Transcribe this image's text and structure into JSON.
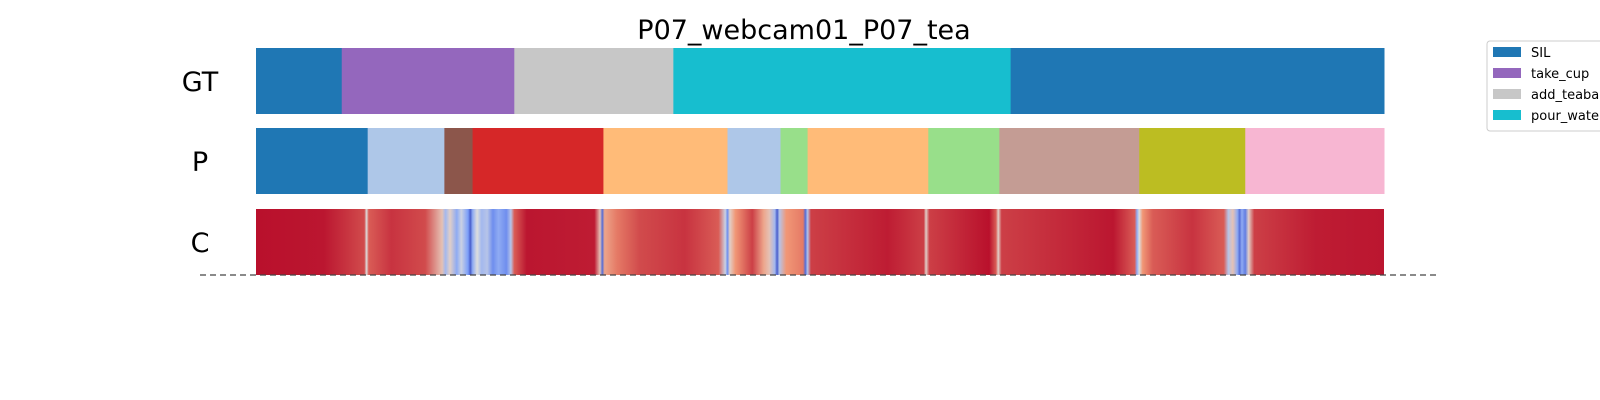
{
  "chart_data": {
    "type": "segmentation-timeline",
    "title": "P07_webcam01_P07_tea",
    "x_range": [
      0,
      1000
    ],
    "rows": [
      {
        "label": "GT",
        "segments": [
          {
            "start": 0,
            "end": 76,
            "color": "#1f77b4"
          },
          {
            "start": 76,
            "end": 229,
            "color": "#9467bd"
          },
          {
            "start": 229,
            "end": 370,
            "color": "#c7c7c7"
          },
          {
            "start": 370,
            "end": 669,
            "color": "#17becf"
          },
          {
            "start": 669,
            "end": 1000,
            "color": "#1f77b4"
          }
        ]
      },
      {
        "label": "P",
        "segments": [
          {
            "start": 0,
            "end": 99,
            "color": "#1f77b4"
          },
          {
            "start": 99,
            "end": 167,
            "color": "#aec7e8"
          },
          {
            "start": 167,
            "end": 192,
            "color": "#8c564b"
          },
          {
            "start": 192,
            "end": 308,
            "color": "#d62728"
          },
          {
            "start": 308,
            "end": 418,
            "color": "#ffbb78"
          },
          {
            "start": 418,
            "end": 465,
            "color": "#aec7e8"
          },
          {
            "start": 465,
            "end": 489,
            "color": "#98df8a"
          },
          {
            "start": 489,
            "end": 596,
            "color": "#ffbb78"
          },
          {
            "start": 596,
            "end": 659,
            "color": "#98df8a"
          },
          {
            "start": 659,
            "end": 783,
            "color": "#c49c94"
          },
          {
            "start": 783,
            "end": 877,
            "color": "#bcbd22"
          },
          {
            "start": 877,
            "end": 1000,
            "color": "#f7b6d2"
          }
        ]
      },
      {
        "label": "C",
        "colormap": "coolwarm",
        "confidence_stops": [
          [
            0,
            0.98
          ],
          [
            60,
            0.97
          ],
          [
            96,
            0.88
          ],
          [
            98,
            0.5
          ],
          [
            100,
            0.85
          ],
          [
            120,
            0.92
          ],
          [
            150,
            0.88
          ],
          [
            165,
            0.6
          ],
          [
            168,
            0.35
          ],
          [
            172,
            0.55
          ],
          [
            178,
            0.3
          ],
          [
            182,
            0.45
          ],
          [
            188,
            0.25
          ],
          [
            190,
            0.05
          ],
          [
            192,
            0.3
          ],
          [
            196,
            0.5
          ],
          [
            200,
            0.35
          ],
          [
            205,
            0.4
          ],
          [
            210,
            0.2
          ],
          [
            215,
            0.3
          ],
          [
            222,
            0.2
          ],
          [
            226,
            0.4
          ],
          [
            229,
            0.85
          ],
          [
            240,
            0.97
          ],
          [
            300,
            0.96
          ],
          [
            305,
            0.6
          ],
          [
            307,
            0.1
          ],
          [
            309,
            0.7
          ],
          [
            320,
            0.8
          ],
          [
            340,
            0.88
          ],
          [
            380,
            0.92
          ],
          [
            410,
            0.85
          ],
          [
            416,
            0.45
          ],
          [
            418,
            0.2
          ],
          [
            420,
            0.55
          ],
          [
            425,
            0.75
          ],
          [
            440,
            0.9
          ],
          [
            450,
            0.7
          ],
          [
            455,
            0.6
          ],
          [
            460,
            0.35
          ],
          [
            462,
            0.05
          ],
          [
            464,
            0.4
          ],
          [
            470,
            0.75
          ],
          [
            485,
            0.8
          ],
          [
            487,
            0.1
          ],
          [
            489,
            0.4
          ],
          [
            492,
            0.9
          ],
          [
            560,
            0.96
          ],
          [
            592,
            0.9
          ],
          [
            594,
            0.55
          ],
          [
            597,
            0.9
          ],
          [
            650,
            0.98
          ],
          [
            656,
            0.85
          ],
          [
            658,
            0.55
          ],
          [
            661,
            0.9
          ],
          [
            760,
            0.97
          ],
          [
            779,
            0.85
          ],
          [
            781,
            0.3
          ],
          [
            783,
            0.5
          ],
          [
            786,
            0.75
          ],
          [
            795,
            0.85
          ],
          [
            830,
            0.92
          ],
          [
            858,
            0.85
          ],
          [
            862,
            0.4
          ],
          [
            866,
            0.6
          ],
          [
            870,
            0.3
          ],
          [
            872,
            0.1
          ],
          [
            874,
            0.3
          ],
          [
            877,
            0.15
          ],
          [
            880,
            0.55
          ],
          [
            885,
            0.9
          ],
          [
            940,
            0.96
          ],
          [
            1000,
            0.97
          ]
        ]
      }
    ],
    "legend": {
      "position": "upper-right, outside",
      "entries": [
        {
          "label": "SIL",
          "color": "#1f77b4"
        },
        {
          "label": "take_cup",
          "color": "#9467bd"
        },
        {
          "label": "add_teaba",
          "color": "#c7c7c7"
        },
        {
          "label": "pour_wate",
          "color": "#17becf"
        }
      ]
    }
  }
}
